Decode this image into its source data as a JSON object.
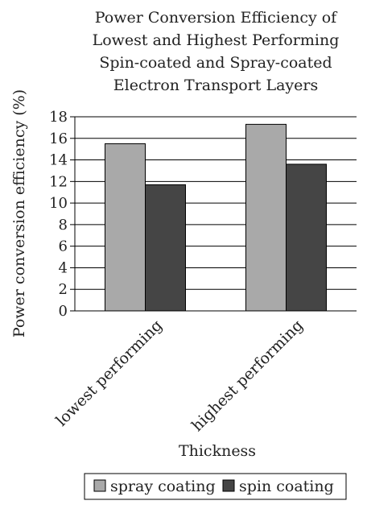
{
  "chart_data": {
    "type": "bar",
    "title_lines": [
      "Power Conversion Efficiency of",
      "Lowest and Highest Performing",
      "Spin-coated and Spray-coated",
      "Electron Transport Layers"
    ],
    "xlabel": "Thickness",
    "ylabel": "Power conversion efficiency (%)",
    "categories": [
      "lowest performing",
      "highest performing"
    ],
    "series": [
      {
        "name": "spray coating",
        "values": [
          15.5,
          17.3
        ],
        "color": "#a9a9a9"
      },
      {
        "name": "spin coating",
        "values": [
          11.7,
          13.6
        ],
        "color": "#454545"
      }
    ],
    "ylim": [
      0,
      18
    ],
    "yticks": [
      "0",
      "2",
      "4",
      "6",
      "8",
      "10",
      "12",
      "14",
      "16",
      "18"
    ],
    "grid": true,
    "legend_position": "bottom"
  }
}
